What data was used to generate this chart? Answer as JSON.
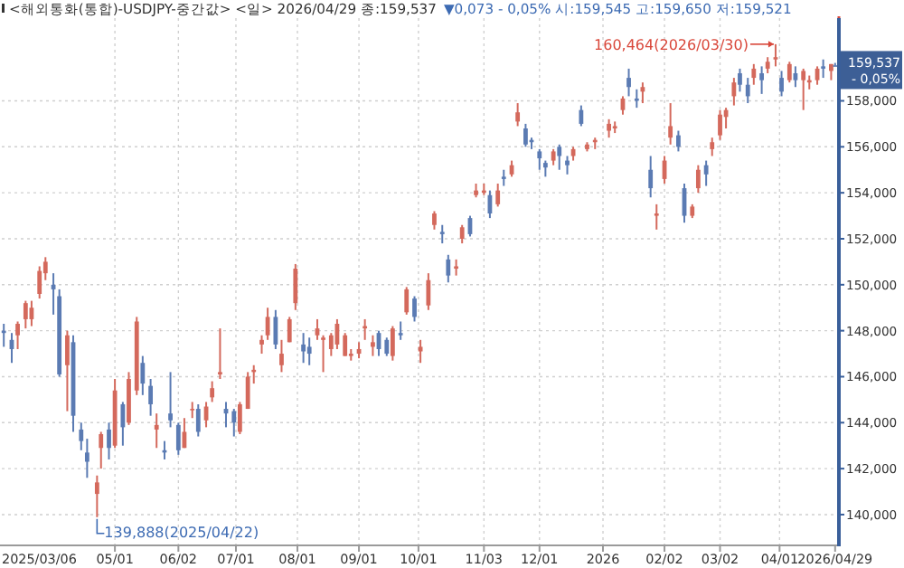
{
  "chart_data": {
    "type": "candlestick",
    "title": "<해외통화(통합)-USDJPY-중간값> <일> 2026/04/29 종:159,537",
    "subtitle": "▼0,073 - 0,05% 시:159,545 고:159,650 저:159,521",
    "colors": [
      "#5b7bb3",
      "#5b7bb3",
      "#d4695c",
      "#d4695c",
      "#d4695c",
      "#d4695c",
      "#d4695c",
      "#5b7bb3",
      "#5b7bb3",
      "#d4695c",
      "#5b7bb3",
      "#5b7bb3",
      "#5b7bb3",
      "#d4695c",
      "#d4695c",
      "#5b7bb3",
      "#d4695c",
      "#5b7bb3",
      "#d4695c",
      "#d4695c",
      "#5b7bb3",
      "#5b7bb3",
      "#d4695c",
      "#5b7bb3",
      "#5b7bb3",
      "#5b7bb3",
      "#d4695c",
      "#d4695c",
      "#5b7bb3",
      "#d4695c",
      "#d4695c",
      "#d4695c",
      "#5b7bb3",
      "#5b7bb3",
      "#d4695c",
      "#d4695c",
      "#d4695c",
      "#d4695c",
      "#d4695c",
      "#5b7bb3",
      "#d4695c",
      "#d4695c",
      "#d4695c",
      "#5b7bb3",
      "#5b7bb3",
      "#d4695c",
      "#d4695c",
      "#d4695c",
      "#d4695c",
      "#d4695c",
      "#d4695c",
      "#d4695c",
      "#d4695c",
      "#d4695c",
      "#5b7bb3",
      "#5b7bb3",
      "#d4695c",
      "#5b7bb3",
      "#d4695c",
      "#5b7bb3",
      "#d4695c",
      "#d4695c",
      "#d4695c",
      "#5b7bb3",
      "#5b7bb3",
      "#d4695c",
      "#d4695c",
      "#5b7bb3",
      "#d4695c",
      "#d4695c",
      "#5b7bb3",
      "#d4695c",
      "#5b7bb3",
      "#d4695c",
      "#d4695c",
      "#5b7bb3",
      "#5b7bb3",
      "#5b7bb3",
      "#5b7bb3",
      "#d4695c",
      "#5b7bb3",
      "#5b7bb3",
      "#d4695c",
      "#5b7bb3",
      "#d4695c",
      "#d4695c",
      "#d4695c",
      "#d4695c",
      "#d4695c",
      "#5b7bb3",
      "#5b7bb3",
      "#d4695c",
      "#5b7bb3",
      "#d4695c",
      "#d4695c",
      "#d4695c",
      "#5b7bb3",
      "#5b7bb3",
      "#d4695c",
      "#d4695c",
      "#5b7bb3",
      "#d4695c",
      "#d4695c",
      "#d4695c",
      "#d4695c",
      "#5b7bb3",
      "#5b7bb3",
      "#d4695c",
      "#5b7bb3",
      "#d4695c",
      "#d4695c",
      "#5b7bb3",
      "#d4695c",
      "#5b7bb3",
      "#d4695c",
      "#d4695c",
      "#d4695c",
      "#5b7bb3",
      "#d4695c",
      "#5b7bb3"
    ],
    "grid": true,
    "xlim": [
      "2025-03-05",
      "2026-04-30"
    ],
    "ylim": [
      138700,
      161600
    ],
    "xticks": [
      {
        "value": "2025-03-06",
        "label": "2025/03/06"
      },
      {
        "value": "2025-05-01",
        "label": "05/01"
      },
      {
        "value": "2025-06-02",
        "label": "06/02"
      },
      {
        "value": "2025-07-01",
        "label": "07/01"
      },
      {
        "value": "2025-08-01",
        "label": "08/01"
      },
      {
        "value": "2025-09-01",
        "label": "09/01"
      },
      {
        "value": "2025-10-01",
        "label": "10/01"
      },
      {
        "value": "2025-11-03",
        "label": "11/03"
      },
      {
        "value": "2025-12-01",
        "label": "12/01"
      },
      {
        "value": "2026-01-02",
        "label": "2026"
      },
      {
        "value": "2026-02-02",
        "label": "02/02"
      },
      {
        "value": "2026-03-02",
        "label": "03/02"
      },
      {
        "value": "2026-04-01",
        "label": "04/01"
      },
      {
        "value": "2026-04-29",
        "label": "2026/04/29"
      }
    ],
    "yticks": [
      {
        "value": 140000,
        "label": "140,000"
      },
      {
        "value": 142000,
        "label": "142,000"
      },
      {
        "value": 144000,
        "label": "144,000"
      },
      {
        "value": 146000,
        "label": "146,000"
      },
      {
        "value": 148000,
        "label": "148,000"
      },
      {
        "value": 150000,
        "label": "150,000"
      },
      {
        "value": 152000,
        "label": "152,000"
      },
      {
        "value": 154000,
        "label": "154,000"
      },
      {
        "value": 156000,
        "label": "156,000"
      },
      {
        "value": 158000,
        "label": "158,000"
      }
    ],
    "annotations": [
      {
        "text": "160,464(2026/03/30)",
        "x": "2026-03-30",
        "y": 160464
      },
      {
        "text": "139,888(2025/04/22)",
        "x": "2025-04-22",
        "y": 139888
      },
      "159,537",
      "- 0,05%"
    ],
    "x": [
      "2025-03-06",
      "2025-03-10",
      "2025-03-13",
      "2025-03-17",
      "2025-03-20",
      "2025-03-24",
      "2025-03-27",
      "2025-03-31",
      "2025-04-03",
      "2025-04-07",
      "2025-04-10",
      "2025-04-14",
      "2025-04-17",
      "2025-04-22",
      "2025-04-24",
      "2025-04-28",
      "2025-05-01",
      "2025-05-05",
      "2025-05-08",
      "2025-05-12",
      "2025-05-15",
      "2025-05-19",
      "2025-05-22",
      "2025-05-26",
      "2025-05-29",
      "2025-06-02",
      "2025-06-05",
      "2025-06-09",
      "2025-06-12",
      "2025-06-16",
      "2025-06-19",
      "2025-06-23",
      "2025-06-26",
      "2025-06-30",
      "2025-07-03",
      "2025-07-07",
      "2025-07-10",
      "2025-07-14",
      "2025-07-17",
      "2025-07-21",
      "2025-07-24",
      "2025-07-28",
      "2025-07-31",
      "2025-08-04",
      "2025-08-07",
      "2025-08-11",
      "2025-08-14",
      "2025-08-18",
      "2025-08-21",
      "2025-08-25",
      "2025-08-28",
      "2025-09-01",
      "2025-09-04",
      "2025-09-08",
      "2025-09-11",
      "2025-09-15",
      "2025-09-18",
      "2025-09-22",
      "2025-09-25",
      "2025-09-29",
      "2025-10-02",
      "2025-10-06",
      "2025-10-09",
      "2025-10-13",
      "2025-10-16",
      "2025-10-20",
      "2025-10-23",
      "2025-10-27",
      "2025-10-30",
      "2025-11-03",
      "2025-11-06",
      "2025-11-10",
      "2025-11-13",
      "2025-11-17",
      "2025-11-20",
      "2025-11-24",
      "2025-11-27",
      "2025-12-01",
      "2025-12-04",
      "2025-12-08",
      "2025-12-11",
      "2025-12-15",
      "2025-12-18",
      "2025-12-22",
      "2025-12-25",
      "2025-12-29",
      "2026-01-05",
      "2026-01-08",
      "2026-01-12",
      "2026-01-15",
      "2026-01-19",
      "2026-01-22",
      "2026-01-26",
      "2026-01-29",
      "2026-02-02",
      "2026-02-05",
      "2026-02-09",
      "2026-02-12",
      "2026-02-16",
      "2026-02-19",
      "2026-02-23",
      "2026-02-26",
      "2026-03-02",
      "2026-03-05",
      "2026-03-09",
      "2026-03-12",
      "2026-03-16",
      "2026-03-19",
      "2026-03-23",
      "2026-03-26",
      "2026-03-30",
      "2026-04-02",
      "2026-04-06",
      "2026-04-09",
      "2026-04-13",
      "2026-04-16",
      "2026-04-20",
      "2026-04-23",
      "2026-04-27",
      "2026-04-29"
    ],
    "ohlc": [
      [
        148000,
        148300,
        147300,
        147900
      ],
      [
        147600,
        147900,
        146600,
        147200
      ],
      [
        147800,
        148400,
        147200,
        148300
      ],
      [
        148500,
        149300,
        148100,
        149200
      ],
      [
        148500,
        149300,
        148200,
        149000
      ],
      [
        149600,
        150800,
        149400,
        150600
      ],
      [
        150500,
        151200,
        150200,
        151000
      ],
      [
        150000,
        150500,
        148700,
        149800
      ],
      [
        149500,
        149800,
        146000,
        146100
      ],
      [
        146500,
        148000,
        144500,
        147800
      ],
      [
        147500,
        147800,
        143600,
        144300
      ],
      [
        143700,
        144000,
        142800,
        143200
      ],
      [
        142700,
        143300,
        141600,
        142300
      ],
      [
        140900,
        141700,
        139888,
        141400
      ],
      [
        142900,
        143600,
        142000,
        143500
      ],
      [
        143700,
        144000,
        142400,
        142900
      ],
      [
        143000,
        145900,
        142900,
        145400
      ],
      [
        144800,
        144900,
        143000,
        143800
      ],
      [
        144000,
        146200,
        143900,
        145900
      ],
      [
        145400,
        148600,
        145200,
        148400
      ],
      [
        146600,
        146900,
        145200,
        145700
      ],
      [
        145600,
        145900,
        144300,
        144800
      ],
      [
        143700,
        144400,
        142900,
        143900
      ],
      [
        142800,
        143200,
        142400,
        142700
      ],
      [
        144400,
        146200,
        143800,
        144100
      ],
      [
        143900,
        144000,
        142600,
        142800
      ],
      [
        142900,
        144200,
        142900,
        143600
      ],
      [
        144600,
        144900,
        144200,
        144600
      ],
      [
        144600,
        144800,
        143400,
        143600
      ],
      [
        144100,
        144900,
        143800,
        144700
      ],
      [
        145100,
        145800,
        144900,
        145500
      ],
      [
        146100,
        148100,
        145900,
        146200
      ],
      [
        144600,
        144900,
        143800,
        144400
      ],
      [
        144500,
        144600,
        143400,
        144000
      ],
      [
        143600,
        144900,
        143500,
        144800
      ],
      [
        144600,
        146200,
        144600,
        146000
      ],
      [
        146200,
        146500,
        145700,
        146300
      ],
      [
        147400,
        147800,
        147000,
        147600
      ],
      [
        147800,
        149000,
        147600,
        148600
      ],
      [
        148600,
        148900,
        147200,
        147400
      ],
      [
        146500,
        147600,
        146200,
        147000
      ],
      [
        147500,
        148600,
        147500,
        148500
      ],
      [
        149200,
        150900,
        148900,
        150700
      ],
      [
        147400,
        147900,
        146600,
        147100
      ],
      [
        147300,
        147700,
        146500,
        147000
      ],
      [
        147800,
        148500,
        147600,
        148100
      ],
      [
        147600,
        147800,
        146200,
        147700
      ],
      [
        147200,
        147900,
        146900,
        147800
      ],
      [
        147400,
        148500,
        147200,
        148300
      ],
      [
        146900,
        147900,
        146900,
        147800
      ],
      [
        146900,
        147200,
        146700,
        147000
      ],
      [
        147000,
        147500,
        146800,
        147200
      ],
      [
        148100,
        148500,
        147600,
        148200
      ],
      [
        147300,
        147800,
        146900,
        147500
      ],
      [
        147900,
        148000,
        146900,
        147200
      ],
      [
        147600,
        147700,
        146900,
        147000
      ],
      [
        146900,
        148200,
        146700,
        148100
      ],
      [
        147900,
        148400,
        147600,
        147800
      ],
      [
        148800,
        149900,
        148700,
        149800
      ],
      [
        149400,
        149500,
        148400,
        148600
      ],
      [
        147100,
        147600,
        146600,
        147300
      ],
      [
        149100,
        150500,
        148900,
        150200
      ],
      [
        152600,
        153200,
        152400,
        153100
      ],
      [
        152300,
        152600,
        151800,
        152200
      ],
      [
        151100,
        151300,
        150100,
        150400
      ],
      [
        150700,
        151100,
        150400,
        150800
      ],
      [
        152000,
        152600,
        151800,
        152500
      ],
      [
        152900,
        153000,
        152100,
        152200
      ],
      [
        153900,
        154400,
        153800,
        154100
      ],
      [
        154000,
        154400,
        153900,
        154100
      ],
      [
        153900,
        154100,
        152900,
        153100
      ],
      [
        153500,
        154400,
        153400,
        154100
      ],
      [
        154700,
        155000,
        154300,
        154600
      ],
      [
        154800,
        155400,
        154700,
        155200
      ],
      [
        157100,
        157900,
        156900,
        157500
      ],
      [
        156800,
        157000,
        156000,
        156100
      ],
      [
        156300,
        156400,
        155900,
        156200
      ],
      [
        155800,
        155900,
        155000,
        155500
      ],
      [
        155300,
        155400,
        154700,
        155100
      ],
      [
        155400,
        155900,
        155200,
        155800
      ],
      [
        156000,
        156100,
        155000,
        155600
      ],
      [
        155400,
        155600,
        154800,
        155200
      ],
      [
        155600,
        156000,
        155400,
        155900
      ],
      [
        157600,
        157800,
        156900,
        157000
      ],
      [
        155900,
        156200,
        155800,
        156100
      ],
      [
        156200,
        156400,
        155900,
        156300
      ],
      [
        156700,
        157200,
        156400,
        157000
      ],
      [
        156800,
        157100,
        156600,
        156900
      ],
      [
        157600,
        158200,
        157400,
        158100
      ],
      [
        159000,
        159400,
        158200,
        158600
      ],
      [
        158100,
        158500,
        157700,
        158000
      ],
      [
        158400,
        158800,
        157900,
        158600
      ],
      [
        155000,
        155600,
        153800,
        154200
      ],
      [
        153000,
        153500,
        152400,
        153100
      ],
      [
        154600,
        155600,
        154400,
        155400
      ],
      [
        156400,
        157900,
        156100,
        156900
      ],
      [
        156500,
        156700,
        155800,
        156000
      ],
      [
        154200,
        154400,
        152700,
        153000
      ],
      [
        153000,
        153500,
        152900,
        153400
      ],
      [
        154200,
        155200,
        154000,
        155000
      ],
      [
        155200,
        155400,
        154300,
        154800
      ],
      [
        155900,
        156400,
        155600,
        156200
      ],
      [
        156500,
        157600,
        156300,
        157400
      ],
      [
        157300,
        157700,
        156800,
        157600
      ],
      [
        158200,
        159000,
        157800,
        158800
      ],
      [
        159200,
        159400,
        158400,
        158700
      ],
      [
        158700,
        159000,
        157900,
        158200
      ],
      [
        159000,
        159600,
        158700,
        159400
      ],
      [
        159200,
        159500,
        158300,
        158900
      ],
      [
        159400,
        159900,
        159200,
        159700
      ],
      [
        159800,
        160464,
        159500,
        159900
      ],
      [
        159000,
        159300,
        158200,
        158400
      ],
      [
        158900,
        159700,
        158800,
        159600
      ],
      [
        159200,
        159500,
        158600,
        158900
      ],
      [
        158900,
        159400,
        157600,
        159300
      ],
      [
        158800,
        159100,
        158500,
        158900
      ],
      [
        158900,
        159500,
        158700,
        159400
      ],
      [
        159500,
        159800,
        159000,
        159400
      ],
      [
        159300,
        159600,
        158900,
        159600
      ],
      [
        159545,
        159650,
        159521,
        159537
      ]
    ]
  }
}
